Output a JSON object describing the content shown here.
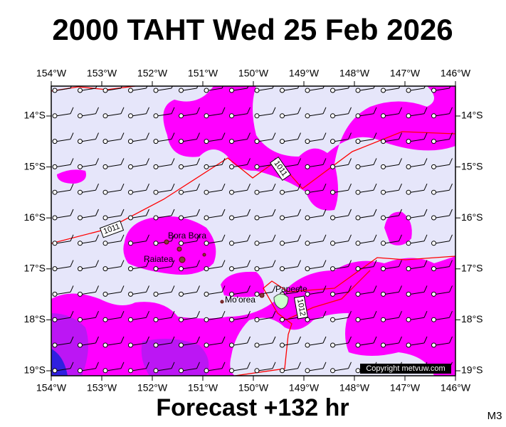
{
  "header": {
    "title": "2000 TAHT Wed 25 Feb 2026"
  },
  "map": {
    "longitude_labels": [
      "154°W",
      "153°W",
      "152°W",
      "151°W",
      "150°W",
      "149°W",
      "148°W",
      "147°W",
      "146°W"
    ],
    "latitude_labels": [
      "14°S",
      "15°S",
      "16°S",
      "17°S",
      "18°S",
      "19°S"
    ],
    "places": [
      "Bora Bora",
      "Raiatea",
      "Mo'orea",
      "Papeete"
    ],
    "isobar_labels": [
      "1011",
      "1011",
      "1012"
    ],
    "copyright": "Copyright metvuw.com"
  },
  "footer": {
    "forecast": "Forecast +132 hr",
    "model": "M3"
  }
}
